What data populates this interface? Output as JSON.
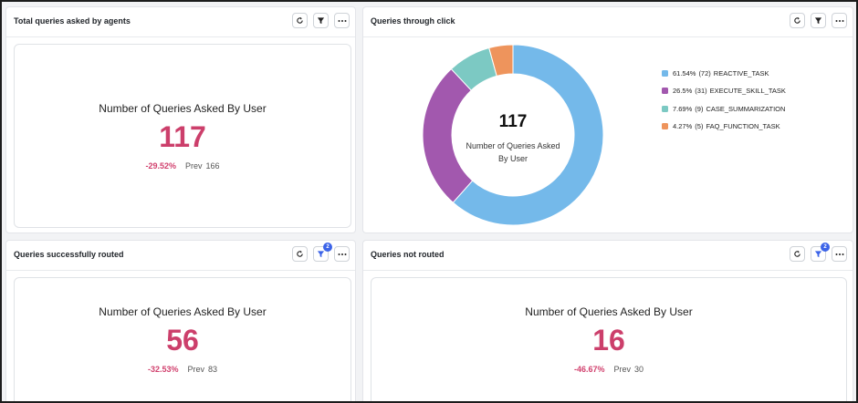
{
  "cards": {
    "total_queries": {
      "title": "Total queries asked by agents",
      "label": "Number of Queries Asked By User",
      "value": "117",
      "change": "-29.52%",
      "prev_label": "Prev",
      "prev_value": "166"
    },
    "queries_click": {
      "title": "Queries through click",
      "center_value": "117",
      "center_label_line1": "Number of Queries Asked",
      "center_label_line2": "By User"
    },
    "queries_routed": {
      "title": "Queries successfully routed",
      "filter_badge": "2",
      "label": "Number of Queries Asked By User",
      "value": "56",
      "change": "-32.53%",
      "prev_label": "Prev",
      "prev_value": "83"
    },
    "queries_not_routed": {
      "title": "Queries not routed",
      "filter_badge": "2",
      "label": "Number of Queries Asked By User",
      "value": "16",
      "change": "-46.67%",
      "prev_label": "Prev",
      "prev_value": "30"
    }
  },
  "toolbar_icons": [
    "refresh-icon",
    "filter-icon",
    "more-options-icon"
  ],
  "chart_data": {
    "type": "pie",
    "donut": true,
    "center_value": "117",
    "center_label": "Number of Queries Asked By User",
    "legend_placement": "right",
    "series": [
      {
        "name": "REACTIVE_TASK",
        "percent_label": "61.54%",
        "count": 72,
        "color": "#74b9ea"
      },
      {
        "name": "EXECUTE_SKILL_TASK",
        "percent_label": "26.5%",
        "count": 31,
        "color": "#a258ae"
      },
      {
        "name": "CASE_SUMMARIZATION",
        "percent_label": "7.69%",
        "count": 9,
        "color": "#7cc9c3"
      },
      {
        "name": "FAQ_FUNCTION_TASK",
        "percent_label": "4.27%",
        "count": 5,
        "color": "#ee945c"
      }
    ]
  }
}
